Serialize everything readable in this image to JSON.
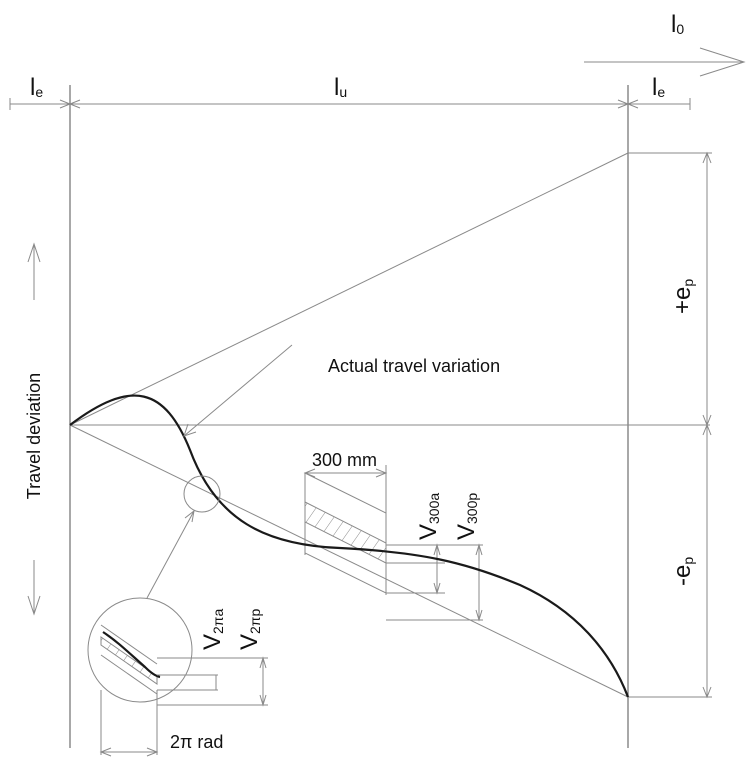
{
  "labels": {
    "l0": "l",
    "l0_sub": "0",
    "le_left": "l",
    "le_left_sub": "e",
    "lu": "l",
    "lu_sub": "u",
    "le_right": "l",
    "le_right_sub": "e",
    "ep_plus": "+e",
    "ep_plus_sub": "p",
    "ep_minus": "-e",
    "ep_minus_sub": "p",
    "y_axis": "Travel deviation",
    "curve_note": "Actual travel variation",
    "dim_300": "300 mm",
    "v300a": "V",
    "v300a_sub": "300a",
    "v300p": "V",
    "v300p_sub": "300p",
    "v2pia": "V",
    "v2pia_sub": "2πa",
    "v2pip": "V",
    "v2pip_sub": "2πp",
    "dim_2pi": "2π rad"
  }
}
